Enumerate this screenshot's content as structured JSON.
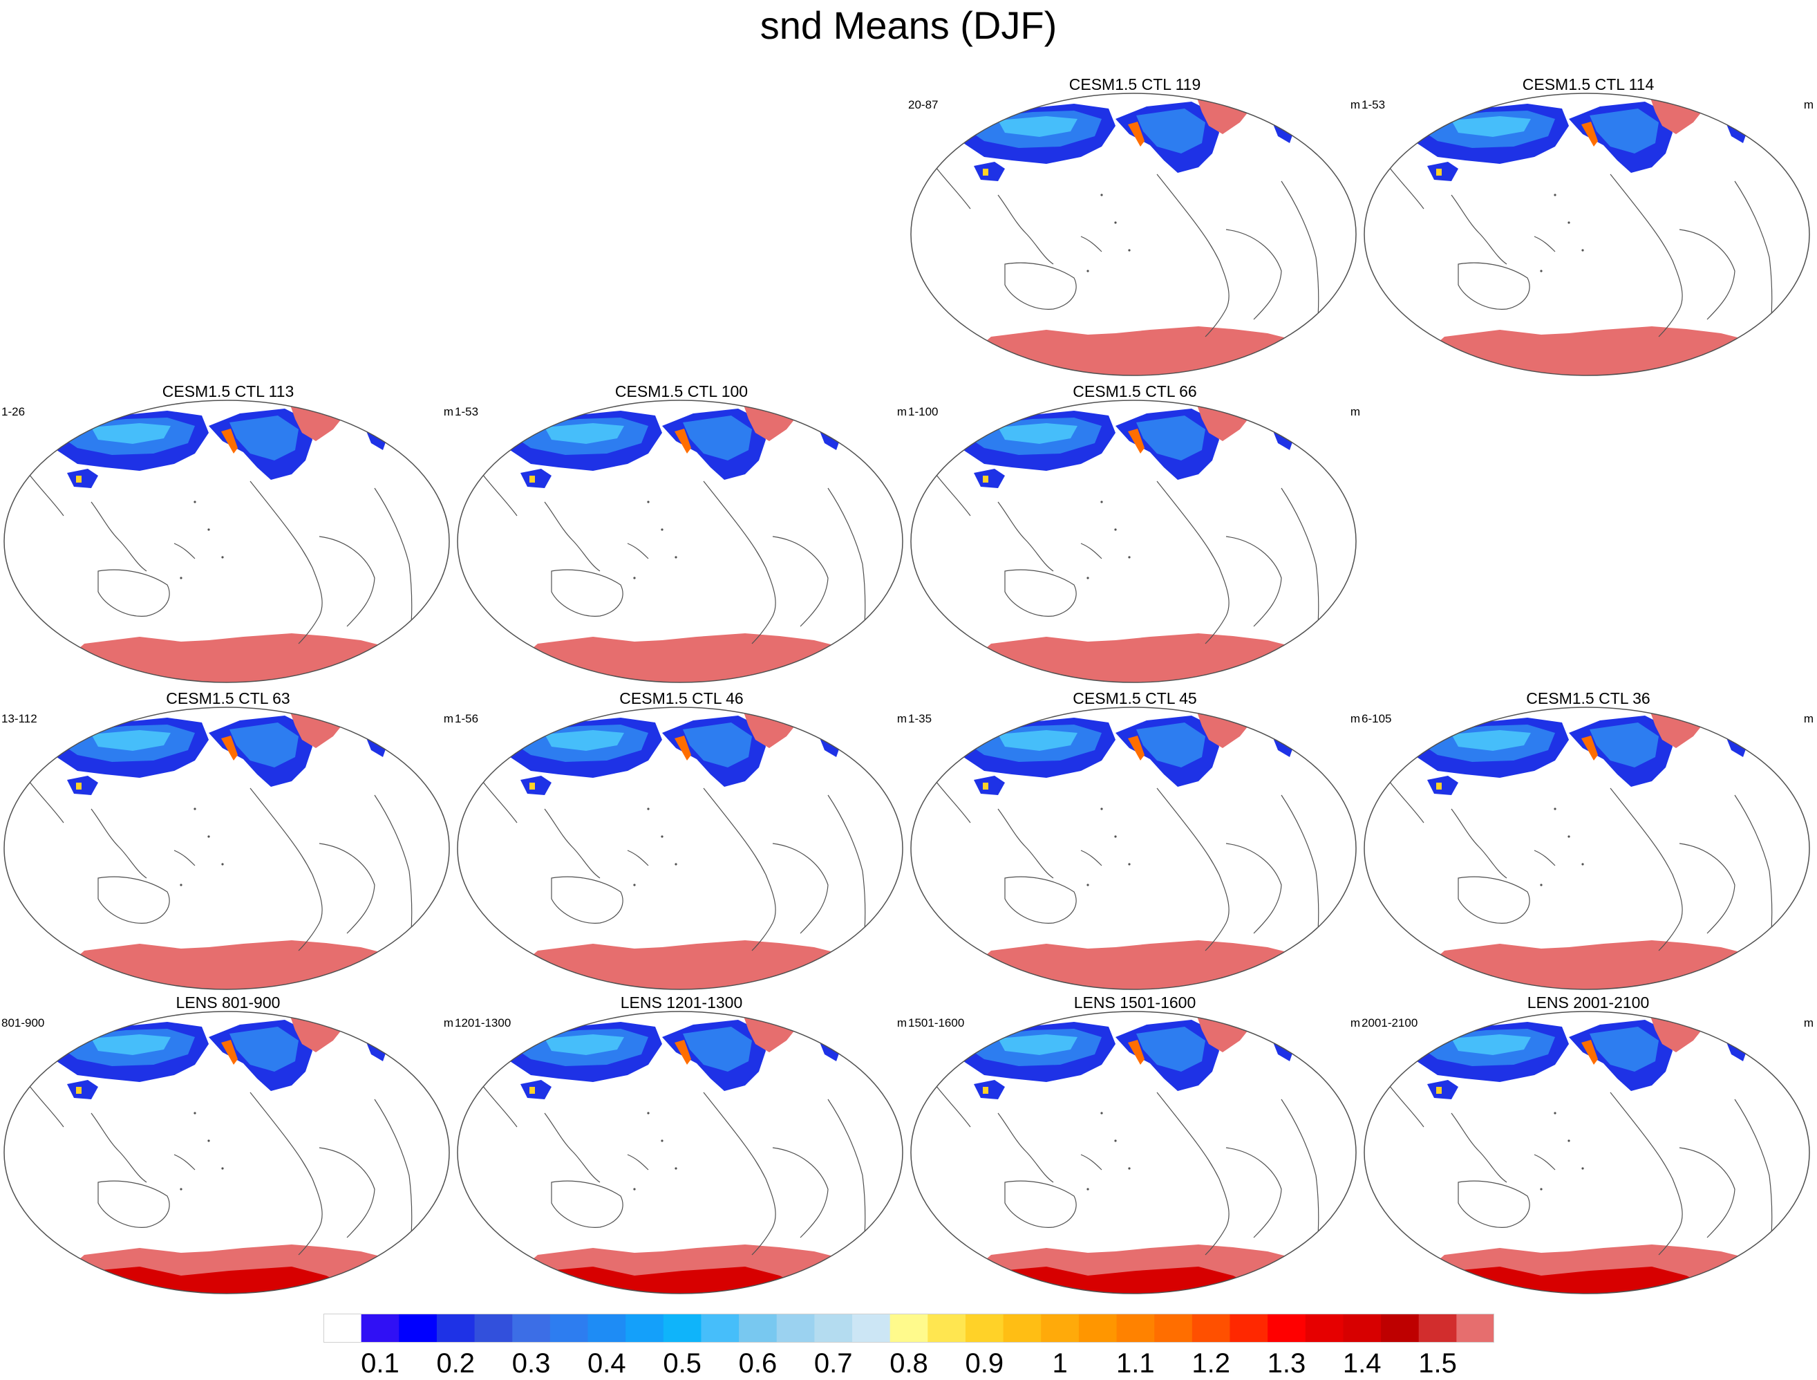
{
  "title": "snd Means (DJF)",
  "units": "m",
  "panels": [
    {
      "row": 0,
      "col": 2,
      "title": "CESM1.5 CTL 119",
      "left_label": "20-87",
      "right_label": "m",
      "antarctic_scheme": "flat"
    },
    {
      "row": 0,
      "col": 3,
      "title": "CESM1.5 CTL 114",
      "left_label": "1-53",
      "right_label": "m",
      "antarctic_scheme": "flat"
    },
    {
      "row": 1,
      "col": 0,
      "title": "CESM1.5 CTL 113",
      "left_label": "1-26",
      "right_label": "m",
      "antarctic_scheme": "flat"
    },
    {
      "row": 1,
      "col": 1,
      "title": "CESM1.5 CTL 100",
      "left_label": "1-53",
      "right_label": "m",
      "antarctic_scheme": "flat"
    },
    {
      "row": 1,
      "col": 2,
      "title": "CESM1.5 CTL 66",
      "left_label": "1-100",
      "right_label": "m",
      "antarctic_scheme": "flat"
    },
    {
      "row": 2,
      "col": 0,
      "title": "CESM1.5 CTL 63",
      "left_label": "13-112",
      "right_label": "m",
      "antarctic_scheme": "flat"
    },
    {
      "row": 2,
      "col": 1,
      "title": "CESM1.5 CTL 46",
      "left_label": "1-56",
      "right_label": "m",
      "antarctic_scheme": "flat"
    },
    {
      "row": 2,
      "col": 2,
      "title": "CESM1.5 CTL 45",
      "left_label": "1-35",
      "right_label": "m",
      "antarctic_scheme": "flat"
    },
    {
      "row": 2,
      "col": 3,
      "title": "CESM1.5 CTL 36",
      "left_label": "6-105",
      "right_label": "m",
      "antarctic_scheme": "flat"
    },
    {
      "row": 3,
      "col": 0,
      "title": "LENS 801-900",
      "left_label": "801-900",
      "right_label": "m",
      "antarctic_scheme": "deep"
    },
    {
      "row": 3,
      "col": 1,
      "title": "LENS 1201-1300",
      "left_label": "1201-1300",
      "right_label": "m",
      "antarctic_scheme": "deep"
    },
    {
      "row": 3,
      "col": 2,
      "title": "LENS 1501-1600",
      "left_label": "1501-1600",
      "right_label": "m",
      "antarctic_scheme": "deep"
    },
    {
      "row": 3,
      "col": 3,
      "title": "LENS 2001-2100",
      "left_label": "2001-2100",
      "right_label": "m",
      "antarctic_scheme": "deep"
    }
  ],
  "colorbar": {
    "colors": [
      "#ffffff",
      "#3010f5",
      "#0000ff",
      "#1e32e6",
      "#3250dc",
      "#3c6ee6",
      "#2d7df0",
      "#1e8cf5",
      "#14a0fa",
      "#0fb4fa",
      "#46befa",
      "#78c8f0",
      "#9bd2f0",
      "#b4dcf0",
      "#cce6f5",
      "#fffa8c",
      "#ffe650",
      "#ffd228",
      "#ffbe14",
      "#ffaa0a",
      "#ff9600",
      "#ff8200",
      "#ff6e00",
      "#ff5000",
      "#ff2800",
      "#ff0000",
      "#e60000",
      "#d70000",
      "#be0000",
      "#d22d2d",
      "#e66e6e"
    ],
    "labels": [
      "0.1",
      "0.2",
      "0.3",
      "0.4",
      "0.5",
      "0.6",
      "0.7",
      "0.8",
      "0.9",
      "1",
      "1.1",
      "1.2",
      "1.3",
      "1.4",
      "1.5"
    ]
  },
  "colors": {
    "snow_deep_blue": "#1e32e6",
    "snow_mid_blue": "#2d7df0",
    "snow_light_blue": "#46befa",
    "ice_sheet": "#e66e6e",
    "antarctic_deep": "#d70000",
    "coastline": "#505050"
  }
}
